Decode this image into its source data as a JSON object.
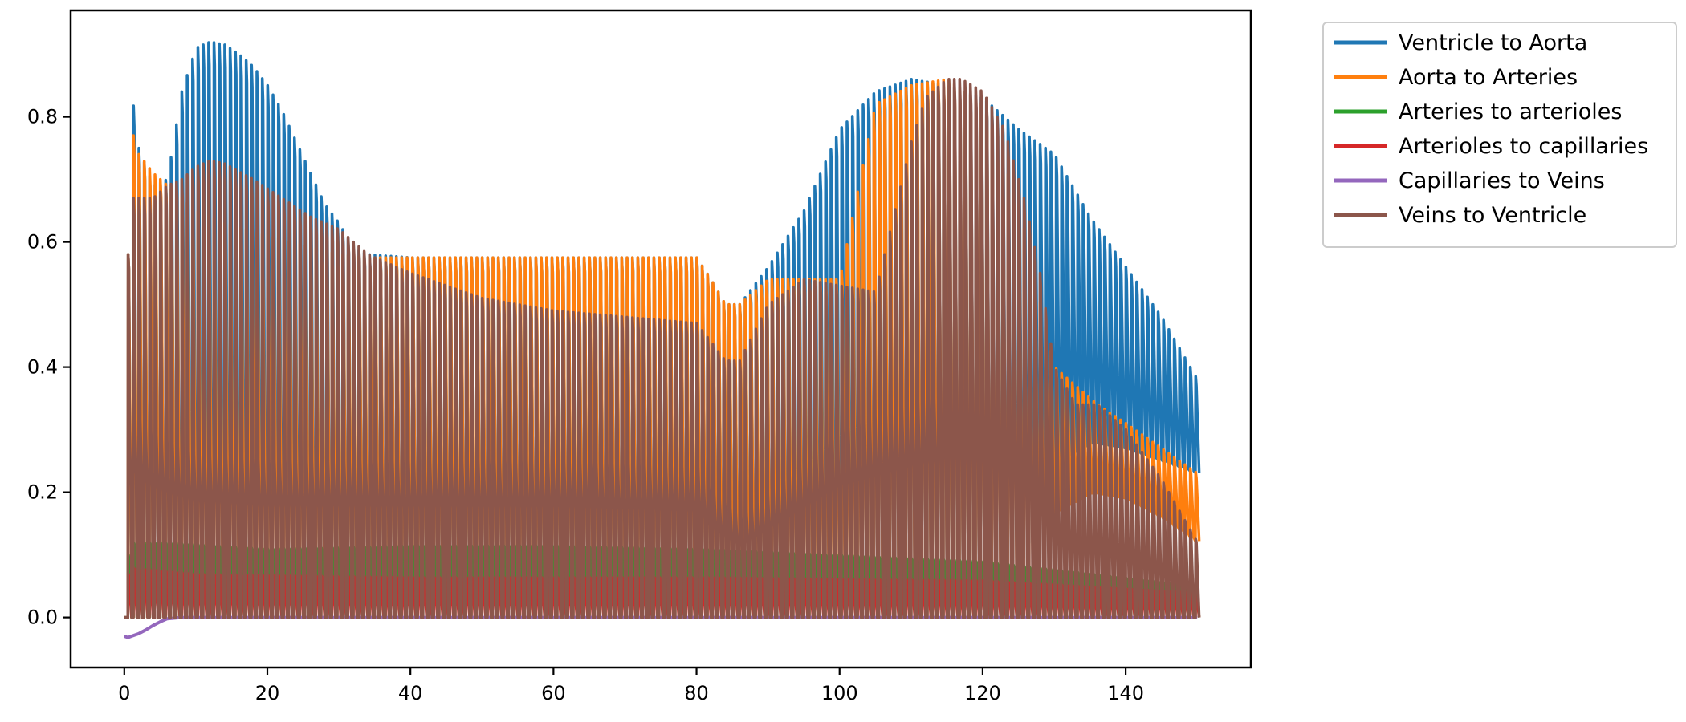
{
  "chart_data": {
    "type": "line",
    "title": "",
    "xlabel": "",
    "ylabel": "",
    "xlim": [
      -7.5,
      157.5
    ],
    "ylim": [
      -0.08,
      0.97
    ],
    "xticks": [
      0,
      20,
      40,
      60,
      80,
      100,
      120,
      140
    ],
    "yticks": [
      0.0,
      0.2,
      0.4,
      0.6,
      0.8
    ],
    "xtick_labels": [
      "0",
      "20",
      "40",
      "60",
      "80",
      "100",
      "120",
      "140"
    ],
    "ytick_labels": [
      "0.0",
      "0.2",
      "0.4",
      "0.6",
      "0.8"
    ],
    "grid": false,
    "legend_position": "outside-top-right",
    "cycle_period": 0.75,
    "series": [
      {
        "name": "Ventricle to Aorta",
        "color": "#1f77b4",
        "peak_envelope": {
          "x": [
            0.5,
            1,
            2,
            4,
            6,
            8,
            10,
            12,
            14,
            16,
            18,
            20,
            22,
            24,
            26,
            28,
            30,
            32,
            34,
            40,
            50,
            60,
            70,
            80,
            82,
            84,
            86,
            90,
            95,
            100,
            105,
            110,
            115,
            120,
            125,
            130,
            135,
            140,
            145,
            150
          ],
          "y": [
            0.58,
            0.84,
            0.75,
            0.69,
            0.7,
            0.84,
            0.91,
            0.92,
            0.915,
            0.9,
            0.88,
            0.85,
            0.81,
            0.76,
            0.71,
            0.66,
            0.63,
            0.59,
            0.58,
            0.575,
            0.575,
            0.575,
            0.575,
            0.575,
            0.54,
            0.5,
            0.5,
            0.56,
            0.65,
            0.78,
            0.84,
            0.86,
            0.85,
            0.83,
            0.78,
            0.74,
            0.64,
            0.56,
            0.48,
            0.38
          ]
        },
        "trough_envelope": {
          "x": [
            0,
            120,
            126,
            130,
            135,
            140,
            145,
            150
          ],
          "y": [
            0.0,
            0.0,
            0.1,
            0.25,
            0.28,
            0.27,
            0.25,
            0.23
          ]
        }
      },
      {
        "name": "Aorta to Arteries",
        "color": "#ff7f0e",
        "peak_envelope": {
          "x": [
            0.5,
            1,
            2,
            4,
            6,
            8,
            10,
            14,
            20,
            30,
            35,
            40,
            50,
            60,
            70,
            80,
            82,
            84,
            86,
            90,
            95,
            100,
            105,
            110,
            115,
            120,
            125,
            130,
            133,
            136,
            140,
            145,
            150
          ],
          "y": [
            0.58,
            0.78,
            0.74,
            0.71,
            0.69,
            0.67,
            0.65,
            0.63,
            0.61,
            0.58,
            0.575,
            0.575,
            0.575,
            0.575,
            0.575,
            0.575,
            0.54,
            0.5,
            0.5,
            0.54,
            0.54,
            0.54,
            0.82,
            0.85,
            0.86,
            0.82,
            0.66,
            0.4,
            0.37,
            0.34,
            0.31,
            0.27,
            0.23
          ]
        },
        "trough_envelope": {
          "x": [
            0,
            120,
            126,
            130,
            135,
            140,
            145,
            150
          ],
          "y": [
            0.0,
            0.0,
            0.05,
            0.17,
            0.2,
            0.19,
            0.16,
            0.12
          ]
        }
      },
      {
        "name": "Arteries to arterioles",
        "color": "#2ca02c",
        "peak_envelope": {
          "x": [
            0.5,
            1,
            5,
            20,
            40,
            60,
            80,
            100,
            120,
            150
          ],
          "y": [
            0.1,
            0.12,
            0.12,
            0.11,
            0.115,
            0.115,
            0.11,
            0.1,
            0.09,
            0.05
          ]
        }
      },
      {
        "name": "Arterioles to capillaries",
        "color": "#d62728",
        "peak_envelope": {
          "x": [
            0.5,
            1,
            10,
            40,
            80,
            120,
            150
          ],
          "y": [
            0.07,
            0.08,
            0.07,
            0.065,
            0.065,
            0.06,
            0.04
          ]
        }
      },
      {
        "name": "Capillaries to Veins",
        "color": "#9467bd",
        "baseline": {
          "x": [
            0,
            0.5,
            1,
            2,
            3,
            4,
            5,
            6,
            8,
            150
          ],
          "y": [
            -0.03,
            -0.032,
            -0.03,
            -0.026,
            -0.02,
            -0.013,
            -0.007,
            -0.002,
            0.0,
            0.0
          ]
        }
      },
      {
        "name": "Veins to Ventricle",
        "color": "#8c564b",
        "peak_envelope": {
          "x": [
            0.5,
            1,
            2,
            4,
            6,
            8,
            10,
            12,
            14,
            18,
            22,
            26,
            30,
            34,
            40,
            50,
            60,
            70,
            80,
            82,
            84,
            86,
            90,
            95,
            100,
            105,
            110,
            112,
            115,
            117,
            120,
            123,
            126,
            128,
            130,
            133,
            136,
            140,
            145,
            150
          ],
          "y": [
            0.58,
            0.67,
            0.67,
            0.67,
            0.69,
            0.7,
            0.72,
            0.73,
            0.725,
            0.7,
            0.67,
            0.64,
            0.62,
            0.58,
            0.55,
            0.51,
            0.49,
            0.48,
            0.47,
            0.44,
            0.41,
            0.41,
            0.5,
            0.54,
            0.53,
            0.52,
            0.76,
            0.83,
            0.86,
            0.86,
            0.84,
            0.78,
            0.66,
            0.55,
            0.4,
            0.34,
            0.34,
            0.3,
            0.22,
            0.12
          ]
        },
        "mid_envelope": {
          "x": [
            0.5,
            1,
            3,
            6,
            10,
            20,
            30,
            40,
            60,
            80,
            82,
            86,
            90,
            100,
            112,
            113
          ],
          "y": [
            0.3,
            0.33,
            0.3,
            0.28,
            0.26,
            0.25,
            0.25,
            0.25,
            0.25,
            0.24,
            0.2,
            0.16,
            0.2,
            0.3,
            0.35,
            0.35
          ]
        },
        "trough_envelope": {
          "x": [
            0,
            150
          ],
          "y": [
            0.0,
            0.0
          ]
        }
      }
    ]
  }
}
